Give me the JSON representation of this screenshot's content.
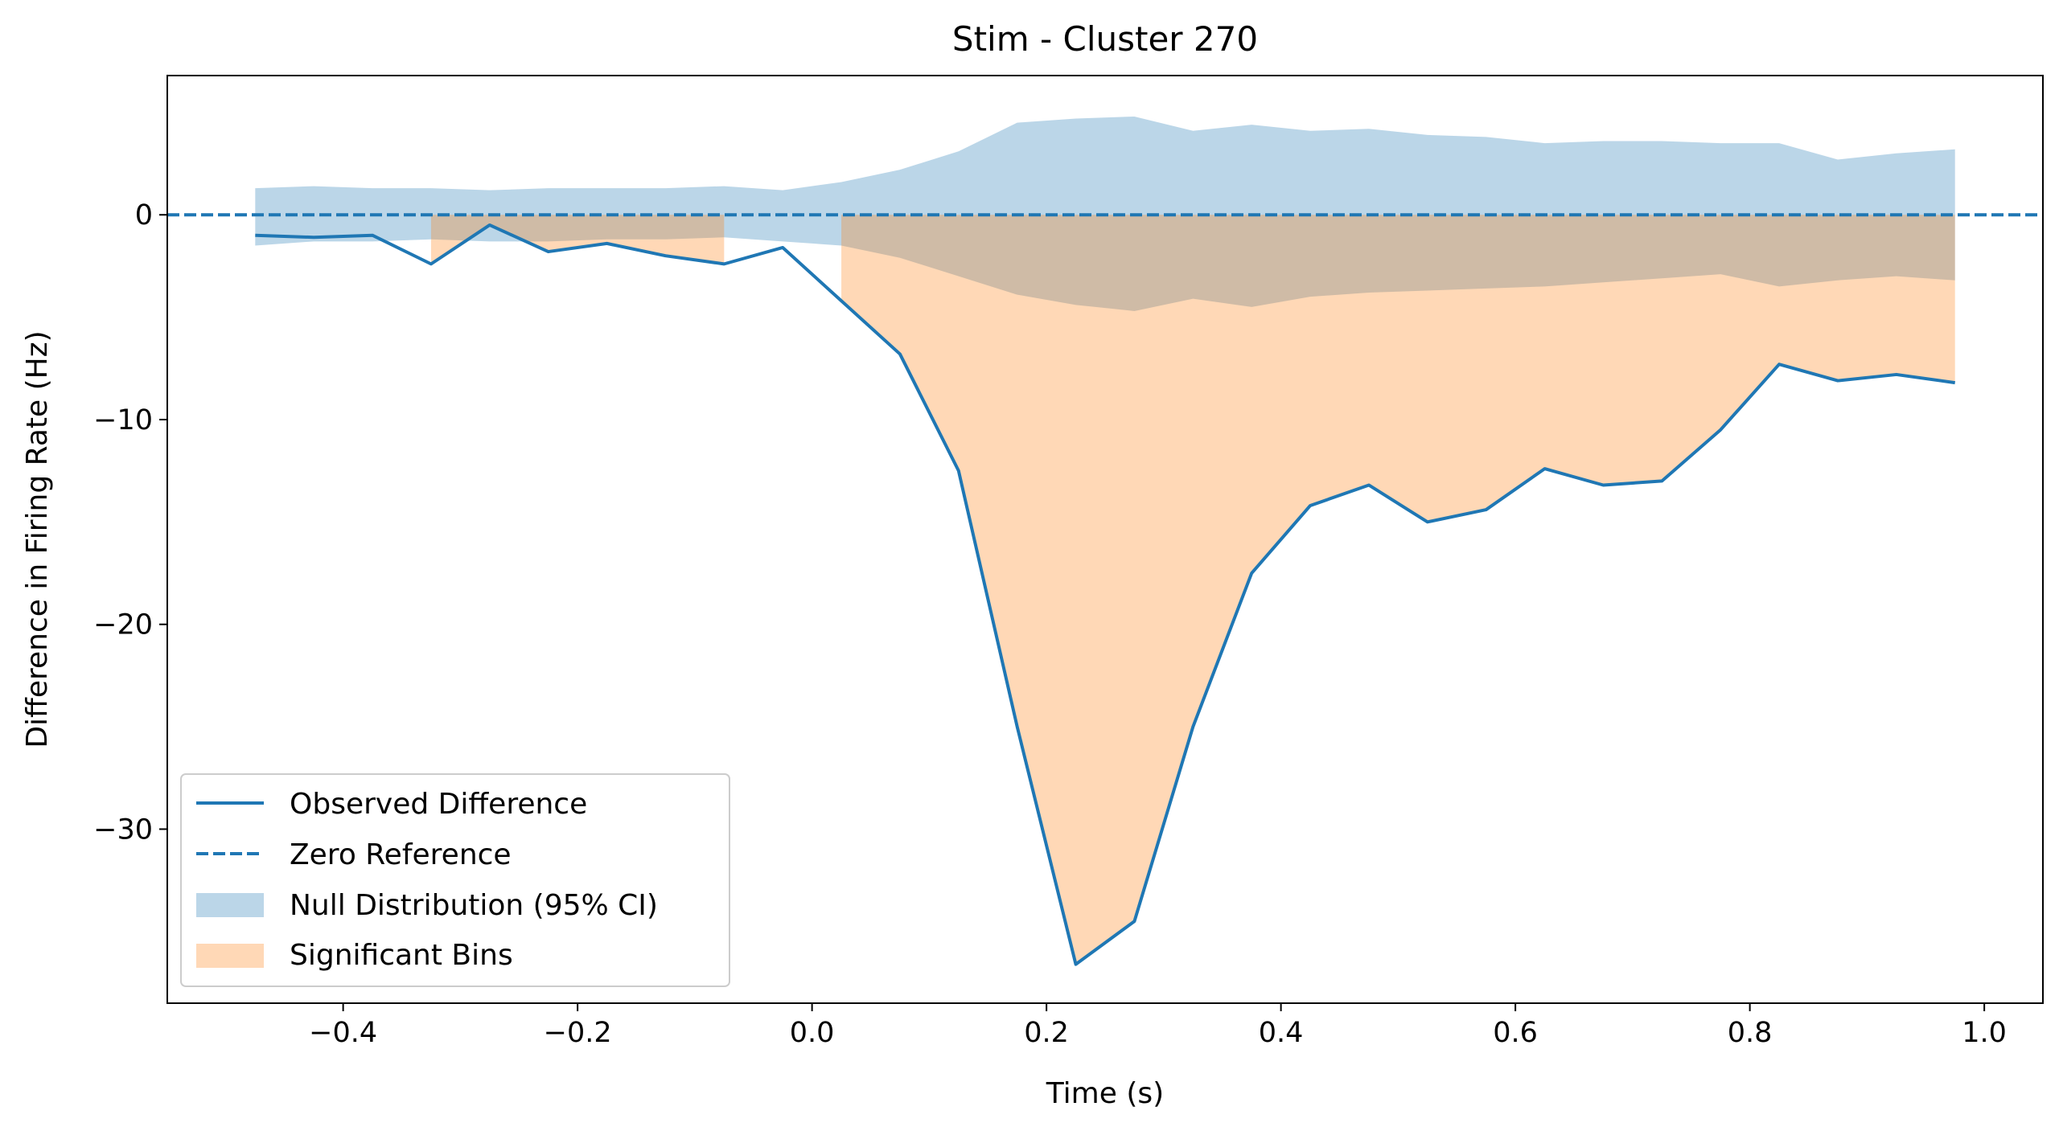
{
  "chart_data": {
    "type": "line",
    "title": "Stim - Cluster 270",
    "xlabel": "Time (s)",
    "ylabel": "Difference in Firing Rate (Hz)",
    "xlim": [
      -0.55,
      1.05
    ],
    "ylim": [
      -38.5,
      6.8
    ],
    "xticks": [
      -0.4,
      -0.2,
      0.0,
      0.2,
      0.4,
      0.6,
      0.8,
      1.0
    ],
    "xtick_labels": [
      "−0.4",
      "−0.2",
      "0.0",
      "0.2",
      "0.4",
      "0.6",
      "0.8",
      "1.0"
    ],
    "yticks": [
      0,
      -10,
      -20,
      -30
    ],
    "ytick_labels": [
      "0",
      "−10",
      "−20",
      "−30"
    ],
    "grid": false,
    "legend_position": "lower-left",
    "x": [
      -0.475,
      -0.425,
      -0.375,
      -0.325,
      -0.275,
      -0.225,
      -0.175,
      -0.125,
      -0.075,
      -0.025,
      0.025,
      0.075,
      0.125,
      0.175,
      0.225,
      0.275,
      0.325,
      0.375,
      0.425,
      0.475,
      0.525,
      0.575,
      0.625,
      0.675,
      0.725,
      0.775,
      0.825,
      0.875,
      0.925,
      0.975
    ],
    "series": [
      {
        "name": "Observed Difference",
        "kind": "line",
        "color": "#1f77b4",
        "values": [
          -1.0,
          -1.1,
          -1.0,
          -2.4,
          -0.5,
          -1.8,
          -1.4,
          -2.0,
          -2.4,
          -1.6,
          -4.2,
          -6.8,
          -12.5,
          -25.0,
          -36.6,
          -34.5,
          -25.0,
          -17.5,
          -14.2,
          -13.2,
          -15.0,
          -14.4,
          -12.4,
          -13.2,
          -13.0,
          -10.5,
          -7.3,
          -8.1,
          -7.8,
          -8.2
        ]
      },
      {
        "name": "Zero Reference",
        "kind": "dashed-hline",
        "color": "#1f77b4",
        "value": 0
      },
      {
        "name": "Null Distribution (95% CI)",
        "kind": "band",
        "color": "#1f77b4",
        "upper": [
          1.3,
          1.4,
          1.3,
          1.3,
          1.2,
          1.3,
          1.3,
          1.3,
          1.4,
          1.2,
          1.6,
          2.2,
          3.1,
          4.5,
          4.7,
          4.8,
          4.1,
          4.4,
          4.1,
          4.2,
          3.9,
          3.8,
          3.5,
          3.6,
          3.6,
          3.5,
          3.5,
          2.7,
          3.0,
          3.2
        ],
        "lower": [
          -1.5,
          -1.3,
          -1.3,
          -1.2,
          -1.3,
          -1.3,
          -1.2,
          -1.2,
          -1.1,
          -1.3,
          -1.5,
          -2.1,
          -3.0,
          -3.9,
          -4.4,
          -4.7,
          -4.1,
          -4.5,
          -4.0,
          -3.8,
          -3.7,
          -3.6,
          -3.5,
          -3.3,
          -3.1,
          -2.9,
          -3.5,
          -3.2,
          -3.0,
          -3.2
        ]
      },
      {
        "name": "Significant Bins",
        "kind": "band",
        "color": "#ff7f0e",
        "upper": [
          0,
          0,
          0,
          0,
          0,
          0,
          0,
          0,
          0,
          0,
          0,
          0,
          0,
          0,
          0,
          0,
          0,
          0,
          0,
          0,
          0,
          0,
          0,
          0,
          0,
          0,
          0,
          0,
          0,
          0
        ],
        "lower": [
          null,
          null,
          null,
          -2.4,
          -0.5,
          -1.8,
          -1.4,
          -2.0,
          -2.4,
          null,
          -4.2,
          -6.8,
          -12.5,
          -25.0,
          -36.6,
          -34.5,
          -25.0,
          -17.5,
          -14.2,
          -13.2,
          -15.0,
          -14.4,
          -12.4,
          -13.2,
          -13.0,
          -10.5,
          -7.3,
          -8.1,
          -7.8,
          -8.2
        ]
      }
    ]
  }
}
